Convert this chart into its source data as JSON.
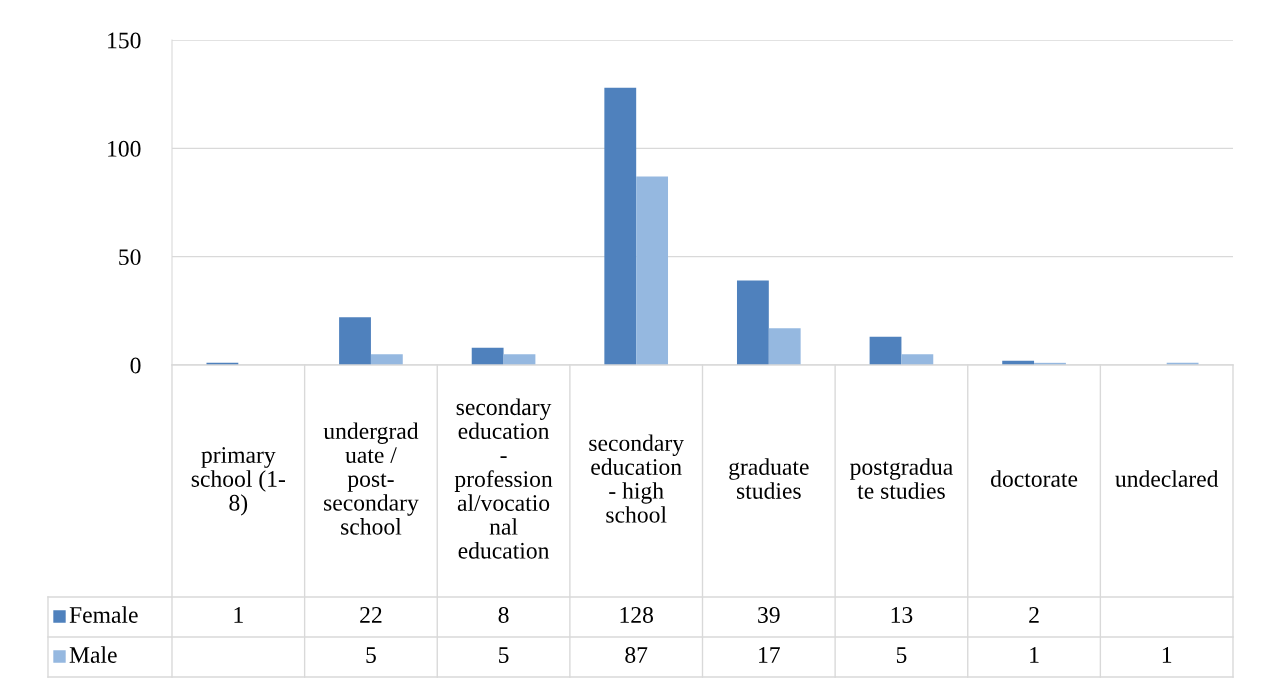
{
  "chart_data": {
    "type": "bar",
    "categories": [
      "primary\nschool (1-\n8)",
      "undergrad\nuate /\npost-\nsecondary\nschool",
      "secondary\neducation\n-\nprofession\nal/vocatio\nnal\neducation",
      "secondary\neducation\n- high\nschool",
      "graduate\nstudies",
      "postgradua\nte studies",
      "doctorate",
      "undeclared"
    ],
    "series": [
      {
        "name": "Female",
        "color": "#4f81bd",
        "values": [
          1,
          22,
          8,
          128,
          39,
          13,
          2,
          null
        ],
        "value_labels": [
          "1",
          "22",
          "8",
          "128",
          "39",
          "13",
          "2",
          null
        ]
      },
      {
        "name": "Male",
        "color": "#95b8e0",
        "values": [
          null,
          5,
          5,
          87,
          17,
          5,
          1,
          1
        ],
        "value_labels": [
          null,
          "5",
          "5",
          "87",
          "17",
          "5",
          "1",
          "1"
        ]
      }
    ],
    "ylim": [
      0,
      150
    ],
    "yticks": [
      0,
      50,
      100,
      150
    ],
    "grid": "y",
    "legend": "bottom",
    "data_labels": true
  }
}
